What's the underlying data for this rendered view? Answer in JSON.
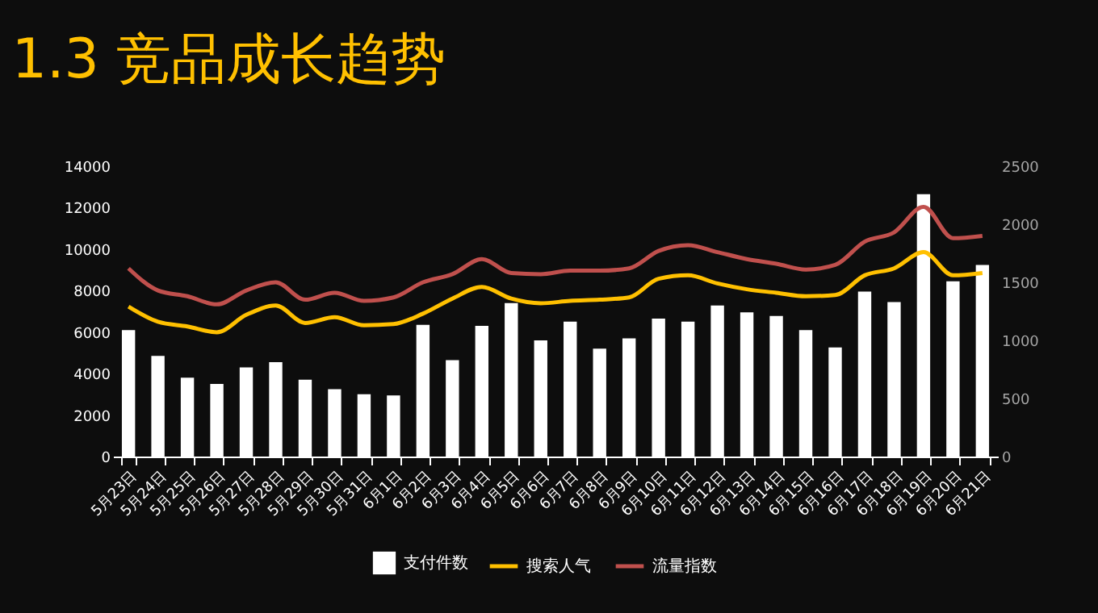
{
  "chart_data": {
    "type": "bar",
    "title": "1.3 竞品成长趋势",
    "categories": [
      "5月23日",
      "5月24日",
      "5月25日",
      "5月26日",
      "5月27日",
      "5月28日",
      "5月29日",
      "5月30日",
      "5月31日",
      "6月1日",
      "6月2日",
      "6月3日",
      "6月4日",
      "6月5日",
      "6月6日",
      "6月7日",
      "6月8日",
      "6月9日",
      "6月10日",
      "6月11日",
      "6月12日",
      "6月13日",
      "6月14日",
      "6月15日",
      "6月16日",
      "6月17日",
      "6月18日",
      "6月19日",
      "6月20日",
      "6月21日"
    ],
    "series": [
      {
        "name": "支付件数",
        "color": "#ffffff",
        "values": [
          6100,
          4850,
          3800,
          3500,
          4300,
          4550,
          3700,
          3250,
          3000,
          2950,
          6350,
          4650,
          6300,
          7400,
          5600,
          6500,
          5200,
          5700,
          6650,
          6500,
          7280,
          6950,
          6780,
          6100,
          5260,
          7950,
          7450,
          12650,
          8450,
          9240
        ]
      },
      {
        "name": "搜索人气",
        "type": "line",
        "axis": "y2",
        "color": "#ffc000",
        "values": [
          1290,
          1160,
          1120,
          1070,
          1220,
          1300,
          1150,
          1200,
          1130,
          1140,
          1230,
          1360,
          1460,
          1360,
          1320,
          1340,
          1350,
          1370,
          1530,
          1560,
          1490,
          1440,
          1410,
          1380,
          1390,
          1560,
          1620,
          1760,
          1560,
          1580
        ]
      },
      {
        "name": "流量指数",
        "type": "line",
        "axis": "y2",
        "color": "#c0504d",
        "values": [
          1620,
          1430,
          1380,
          1310,
          1430,
          1500,
          1350,
          1410,
          1340,
          1370,
          1500,
          1570,
          1700,
          1580,
          1570,
          1600,
          1600,
          1620,
          1770,
          1820,
          1760,
          1700,
          1660,
          1610,
          1650,
          1850,
          1930,
          2150,
          1880,
          1900
        ]
      }
    ],
    "ylim": [
      0,
      14000
    ],
    "yticks": [
      0,
      2000,
      4000,
      6000,
      8000,
      10000,
      12000,
      14000
    ],
    "y2lim": [
      0,
      2500
    ],
    "y2ticks": [
      0,
      500,
      1000,
      1500,
      2000,
      2500
    ],
    "grid": false,
    "legend": "bottom"
  }
}
